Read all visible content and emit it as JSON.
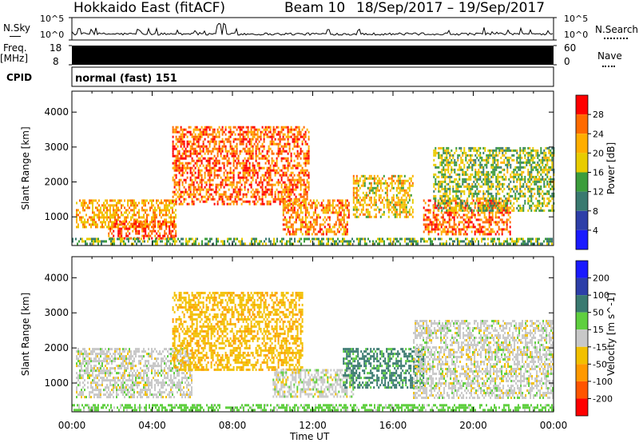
{
  "header": {
    "title": "Hokkaido East (fitACF)",
    "beam": "Beam 10",
    "date_range": "18/Sep/2017 – 19/Sep/2017"
  },
  "top_panels": {
    "nsky_label": "N.Sky",
    "nsky_ticks": [
      "10^5",
      "10^0"
    ],
    "nsearch_label": "N.Search",
    "nsearch_ticks": [
      "10^5",
      "10^0"
    ],
    "freq_label": "Freq.",
    "freq_unit": "[MHz]",
    "freq_ticks": [
      "18",
      "8"
    ],
    "nave_label": "Nave",
    "nave_ticks": [
      "60",
      "0"
    ],
    "cpid_label": "CPID",
    "cpid_value": "normal (fast) 151"
  },
  "chart_data": [
    {
      "type": "heatmap",
      "title": "",
      "xlabel": "Time UT",
      "ylabel": "Slant Range [km]",
      "x_ticks": [
        "00:00",
        "04:00",
        "08:00",
        "12:00",
        "16:00",
        "20:00",
        "00:00"
      ],
      "x_range_hours": [
        0,
        24
      ],
      "y_ticks": [
        1000,
        2000,
        3000,
        4000
      ],
      "y_range_km": [
        180,
        4600
      ],
      "colorbar": {
        "label": "Power [dB]",
        "ticks": [
          "28",
          "24",
          "20",
          "16",
          "12",
          "8",
          "4"
        ],
        "colors": [
          "#ff0000",
          "#ff6a00",
          "#ffae00",
          "#e8cc00",
          "#3c9d3c",
          "#3a7a70",
          "#2d3fa8",
          "#1a1aff"
        ]
      },
      "regions": [
        {
          "t": [
            0.2,
            5.2
          ],
          "r": [
            700,
            1500
          ],
          "value": 22
        },
        {
          "t": [
            1.8,
            5.2
          ],
          "r": [
            400,
            900
          ],
          "value": 27
        },
        {
          "t": [
            5.0,
            11.8
          ],
          "r": [
            1400,
            3600
          ],
          "value": 26
        },
        {
          "t": [
            10.5,
            13.8
          ],
          "r": [
            500,
            1500
          ],
          "value": 24
        },
        {
          "t": [
            14.0,
            17.0
          ],
          "r": [
            1000,
            2200
          ],
          "value": 20
        },
        {
          "t": [
            17.5,
            21.8
          ],
          "r": [
            500,
            1500
          ],
          "value": 26
        },
        {
          "t": [
            18.0,
            24.0
          ],
          "r": [
            1200,
            3000
          ],
          "value": 16
        },
        {
          "t": [
            0.0,
            24.0
          ],
          "r": [
            200,
            400
          ],
          "value": 14
        }
      ]
    },
    {
      "type": "heatmap",
      "title": "",
      "xlabel": "Time UT",
      "ylabel": "Slant Range [km]",
      "x_ticks": [
        "00:00",
        "04:00",
        "08:00",
        "12:00",
        "16:00",
        "20:00",
        "00:00"
      ],
      "x_range_hours": [
        0,
        24
      ],
      "y_ticks": [
        1000,
        2000,
        3000,
        4000
      ],
      "y_range_km": [
        180,
        4600
      ],
      "colorbar": {
        "label": "Velocity [m s^-1]",
        "ticks": [
          "200",
          "100",
          "50",
          "15",
          "-15",
          "-50",
          "-100",
          "-200"
        ],
        "colors": [
          "#1a1aff",
          "#2d3fa8",
          "#3a7a70",
          "#5fcf3f",
          "#c8c8c8",
          "#f2c000",
          "#ff9900",
          "#ff5500",
          "#ff0000"
        ]
      },
      "regions": [
        {
          "t": [
            0.2,
            6.0
          ],
          "r": [
            600,
            2000
          ],
          "value": 0
        },
        {
          "t": [
            5.0,
            11.5
          ],
          "r": [
            1400,
            3600
          ],
          "value": -40
        },
        {
          "t": [
            10.0,
            14.0
          ],
          "r": [
            600,
            1400
          ],
          "value": 0
        },
        {
          "t": [
            13.5,
            17.5
          ],
          "r": [
            900,
            2000
          ],
          "value": 60
        },
        {
          "t": [
            17.0,
            24.0
          ],
          "r": [
            600,
            2800
          ],
          "value": 0
        },
        {
          "t": [
            0.0,
            24.0
          ],
          "r": [
            200,
            400
          ],
          "value": 30
        }
      ]
    }
  ]
}
